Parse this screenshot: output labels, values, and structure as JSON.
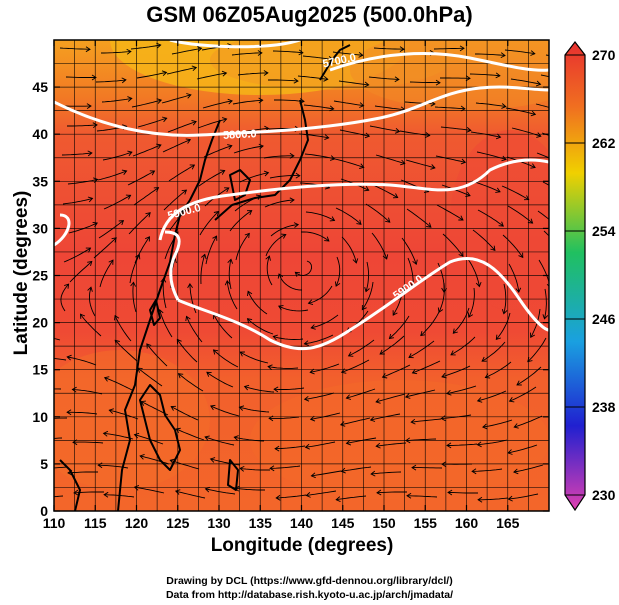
{
  "title": "GSM 06Z05Aug2025 (500.0hPa)",
  "x_axis": {
    "label": "Longitude (degrees)",
    "ticks": [
      "110",
      "115",
      "120",
      "125",
      "130",
      "135",
      "140",
      "145",
      "150",
      "155",
      "160",
      "165"
    ]
  },
  "y_axis": {
    "label": "Latitude  (degrees)",
    "ticks": [
      "0",
      "5",
      "10",
      "15",
      "20",
      "25",
      "30",
      "35",
      "40",
      "45"
    ]
  },
  "colorbar": {
    "ticks": [
      "230",
      "238",
      "246",
      "254",
      "262",
      "270"
    ],
    "colors": [
      "#e040b0",
      "#2020d0",
      "#1aa0e0",
      "#20c060",
      "#f0d000",
      "#f07020",
      "#e83030"
    ]
  },
  "contours": [
    {
      "label": "5700.0"
    },
    {
      "label": "5800.0"
    },
    {
      "label": "5900.0"
    }
  ],
  "map_colors": {
    "warm": "#f05a2a",
    "warmer": "#f46a28",
    "hot": "#ee4336",
    "north": "#f4a020",
    "gridline": "#000000"
  },
  "credits": {
    "line1": "Drawing by DCL (https://www.gfd-dennou.org/library/dcl/)",
    "line2": "Data from http://database.rish.kyoto-u.ac.jp/arch/jmadata/"
  }
}
